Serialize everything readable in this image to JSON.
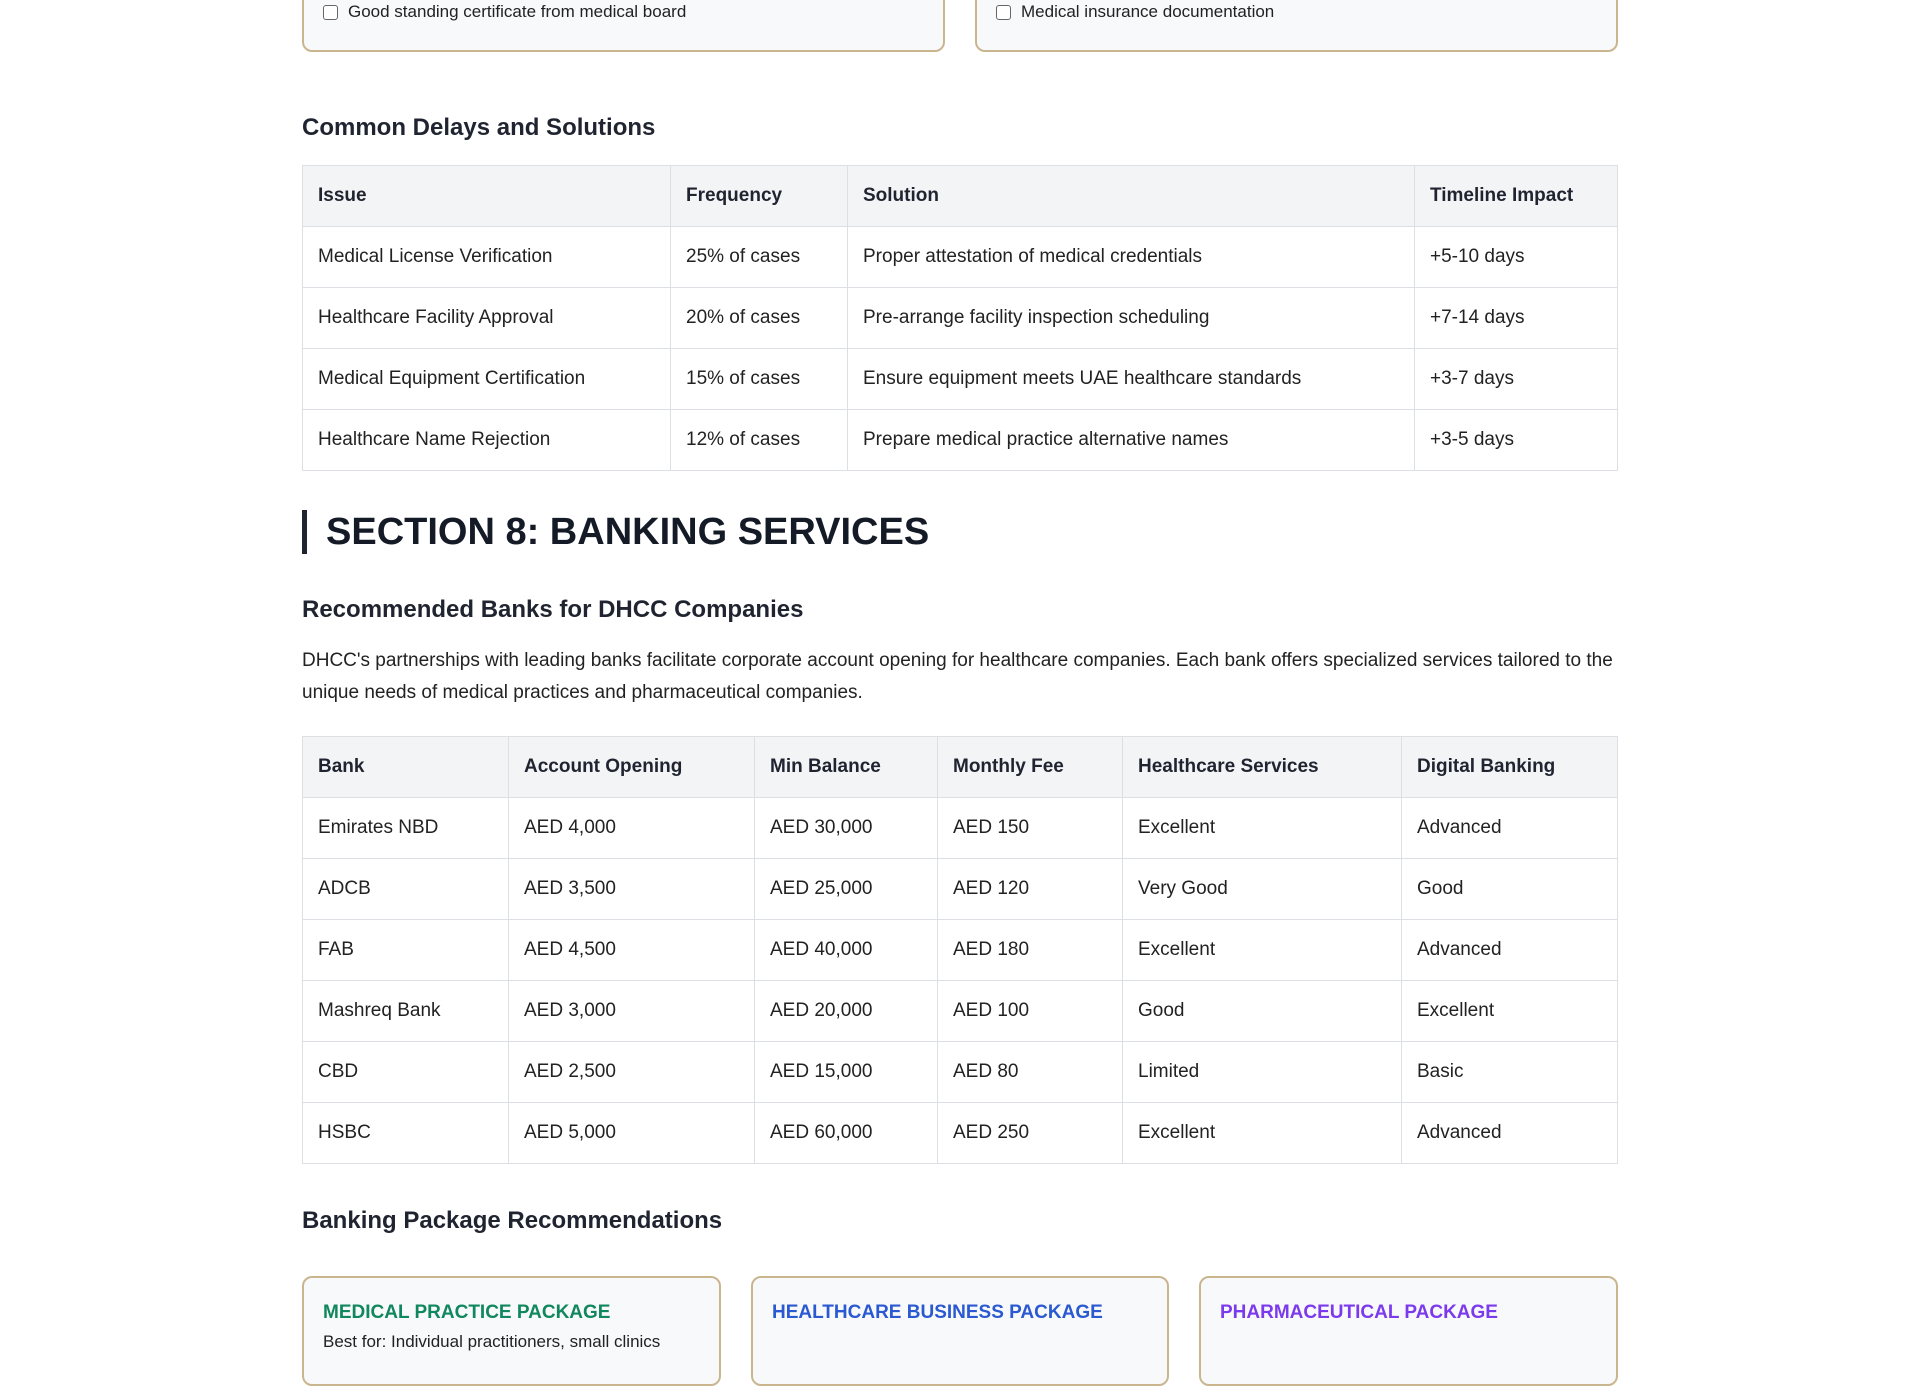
{
  "checklists": {
    "left_item": "Good standing certificate from medical board",
    "right_item": "Medical insurance documentation"
  },
  "delays": {
    "heading": "Common Delays and Solutions",
    "headers": [
      "Issue",
      "Frequency",
      "Solution",
      "Timeline Impact"
    ],
    "rows": [
      [
        "Medical License Verification",
        "25% of cases",
        "Proper attestation of medical credentials",
        "+5-10 days"
      ],
      [
        "Healthcare Facility Approval",
        "20% of cases",
        "Pre-arrange facility inspection scheduling",
        "+7-14 days"
      ],
      [
        "Medical Equipment Certification",
        "15% of cases",
        "Ensure equipment meets UAE healthcare standards",
        "+3-7 days"
      ],
      [
        "Healthcare Name Rejection",
        "12% of cases",
        "Prepare medical practice alternative names",
        "+3-5 days"
      ]
    ]
  },
  "section8": {
    "title": "SECTION 8: BANKING SERVICES",
    "banks_heading": "Recommended Banks for DHCC Companies",
    "intro": "DHCC's partnerships with leading banks facilitate corporate account opening for healthcare companies. Each bank offers specialized services tailored to the unique needs of medical practices and pharmaceutical companies.",
    "bank_headers": [
      "Bank",
      "Account Opening",
      "Min Balance",
      "Monthly Fee",
      "Healthcare Services",
      "Digital Banking"
    ],
    "bank_rows": [
      [
        "Emirates NBD",
        "AED 4,000",
        "AED 30,000",
        "AED 150",
        "Excellent",
        "Advanced"
      ],
      [
        "ADCB",
        "AED 3,500",
        "AED 25,000",
        "AED 120",
        "Very Good",
        "Good"
      ],
      [
        "FAB",
        "AED 4,500",
        "AED 40,000",
        "AED 180",
        "Excellent",
        "Advanced"
      ],
      [
        "Mashreq Bank",
        "AED 3,000",
        "AED 20,000",
        "AED 100",
        "Good",
        "Excellent"
      ],
      [
        "CBD",
        "AED 2,500",
        "AED 15,000",
        "AED 80",
        "Limited",
        "Basic"
      ],
      [
        "HSBC",
        "AED 5,000",
        "AED 60,000",
        "AED 250",
        "Excellent",
        "Advanced"
      ]
    ],
    "packages_heading": "Banking Package Recommendations",
    "packages": [
      {
        "title": "MEDICAL PRACTICE PACKAGE",
        "subtitle": "Best for: Individual practitioners, small clinics",
        "color": "#11875d"
      },
      {
        "title": "HEALTHCARE BUSINESS PACKAGE",
        "color": "#2b59d1"
      },
      {
        "title": "PHARMACEUTICAL PACKAGE",
        "color": "#7c3aed"
      }
    ]
  }
}
